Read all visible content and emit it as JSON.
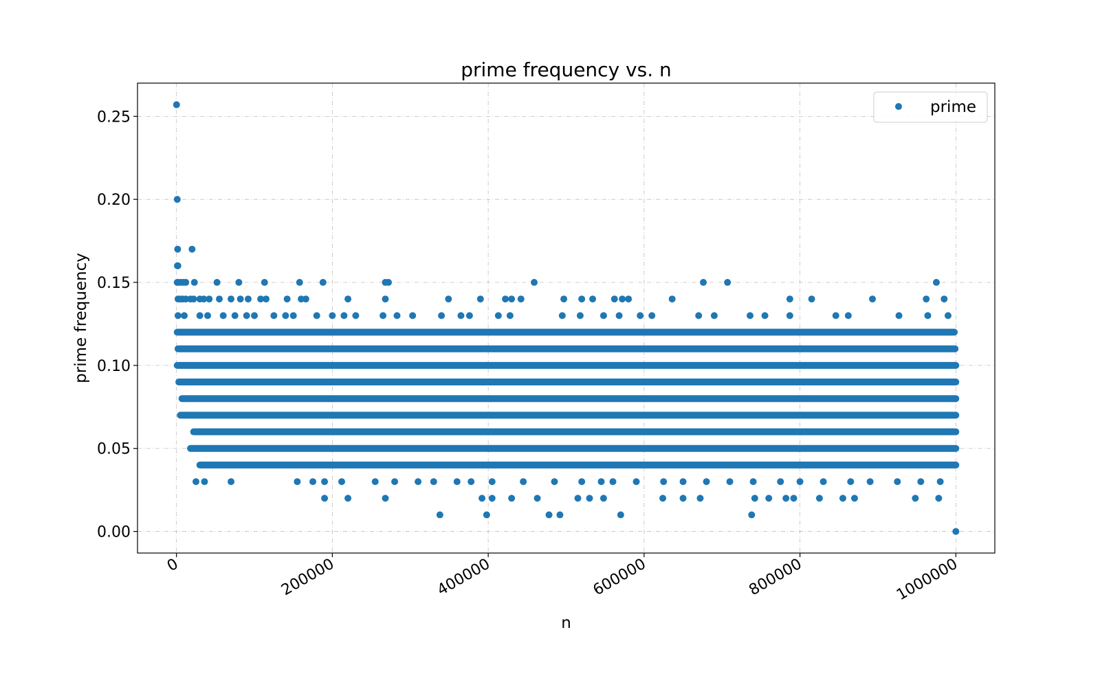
{
  "chart_data": {
    "type": "scatter",
    "title": "prime frequency vs. n",
    "xlabel": "n",
    "ylabel": "prime frequency",
    "xlim": [
      -50000,
      1050000
    ],
    "ylim": [
      -0.013,
      0.27
    ],
    "x_ticks": [
      0,
      200000,
      400000,
      600000,
      800000,
      1000000
    ],
    "x_tick_labels": [
      "0",
      "200000",
      "400000",
      "600000",
      "800000",
      "1000000"
    ],
    "y_ticks": [
      0.0,
      0.05,
      0.1,
      0.15,
      0.2,
      0.25
    ],
    "y_tick_labels": [
      "0.00",
      "0.05",
      "0.10",
      "0.15",
      "0.20",
      "0.25"
    ],
    "grid": true,
    "legend_position": "top-right",
    "colors": {
      "series": "#1f77b4",
      "grid": "#b0b0b0",
      "axis": "#000000"
    },
    "series": [
      {
        "name": "prime",
        "bands": [
          {
            "y": 0.04,
            "x_range": [
              30000,
              1000000
            ]
          },
          {
            "y": 0.05,
            "x_range": [
              18000,
              1000000
            ]
          },
          {
            "y": 0.06,
            "x_range": [
              22000,
              1000000
            ]
          },
          {
            "y": 0.07,
            "x_range": [
              5000,
              1000000
            ]
          },
          {
            "y": 0.08,
            "x_range": [
              7000,
              1000000
            ]
          },
          {
            "y": 0.09,
            "x_range": [
              3000,
              1000000
            ]
          },
          {
            "y": 0.1,
            "x_range": [
              1000,
              1000000
            ]
          },
          {
            "y": 0.11,
            "x_range": [
              2000,
              999000
            ]
          },
          {
            "y": 0.12,
            "x_range": [
              1000,
              998000
            ]
          }
        ],
        "points": [
          [
            100,
            0.257
          ],
          [
            1000,
            0.2
          ],
          [
            1500,
            0.17
          ],
          [
            20000,
            0.17
          ],
          [
            1200,
            0.16
          ],
          [
            1800,
            0.16
          ],
          [
            1000,
            0.15
          ],
          [
            3000,
            0.15
          ],
          [
            6000,
            0.15
          ],
          [
            9000,
            0.15
          ],
          [
            12000,
            0.15
          ],
          [
            23000,
            0.15
          ],
          [
            52000,
            0.15
          ],
          [
            80000,
            0.15
          ],
          [
            113000,
            0.15
          ],
          [
            158000,
            0.15
          ],
          [
            188000,
            0.15
          ],
          [
            268000,
            0.15
          ],
          [
            272000,
            0.15
          ],
          [
            459000,
            0.15
          ],
          [
            676000,
            0.15
          ],
          [
            707000,
            0.15
          ],
          [
            975000,
            0.15
          ],
          [
            2000,
            0.14
          ],
          [
            5000,
            0.14
          ],
          [
            8000,
            0.14
          ],
          [
            12000,
            0.14
          ],
          [
            18000,
            0.14
          ],
          [
            22000,
            0.14
          ],
          [
            30000,
            0.14
          ],
          [
            35000,
            0.14
          ],
          [
            42000,
            0.14
          ],
          [
            55000,
            0.14
          ],
          [
            70000,
            0.14
          ],
          [
            82000,
            0.14
          ],
          [
            92000,
            0.14
          ],
          [
            108000,
            0.14
          ],
          [
            115000,
            0.14
          ],
          [
            142000,
            0.14
          ],
          [
            160000,
            0.14
          ],
          [
            166000,
            0.14
          ],
          [
            220000,
            0.14
          ],
          [
            268000,
            0.14
          ],
          [
            349000,
            0.14
          ],
          [
            390000,
            0.14
          ],
          [
            422000,
            0.14
          ],
          [
            430000,
            0.14
          ],
          [
            442000,
            0.14
          ],
          [
            497000,
            0.14
          ],
          [
            520000,
            0.14
          ],
          [
            534000,
            0.14
          ],
          [
            562000,
            0.14
          ],
          [
            572000,
            0.14
          ],
          [
            580000,
            0.14
          ],
          [
            636000,
            0.14
          ],
          [
            787000,
            0.14
          ],
          [
            815000,
            0.14
          ],
          [
            893000,
            0.14
          ],
          [
            962000,
            0.14
          ],
          [
            985000,
            0.14
          ],
          [
            2000,
            0.13
          ],
          [
            10000,
            0.13
          ],
          [
            30000,
            0.13
          ],
          [
            40000,
            0.13
          ],
          [
            60000,
            0.13
          ],
          [
            75000,
            0.13
          ],
          [
            90000,
            0.13
          ],
          [
            100000,
            0.13
          ],
          [
            125000,
            0.13
          ],
          [
            140000,
            0.13
          ],
          [
            150000,
            0.13
          ],
          [
            180000,
            0.13
          ],
          [
            200000,
            0.13
          ],
          [
            215000,
            0.13
          ],
          [
            230000,
            0.13
          ],
          [
            265000,
            0.13
          ],
          [
            283000,
            0.13
          ],
          [
            303000,
            0.13
          ],
          [
            340000,
            0.13
          ],
          [
            365000,
            0.13
          ],
          [
            376000,
            0.13
          ],
          [
            413000,
            0.13
          ],
          [
            428000,
            0.13
          ],
          [
            495000,
            0.13
          ],
          [
            518000,
            0.13
          ],
          [
            548000,
            0.13
          ],
          [
            568000,
            0.13
          ],
          [
            595000,
            0.13
          ],
          [
            610000,
            0.13
          ],
          [
            670000,
            0.13
          ],
          [
            690000,
            0.13
          ],
          [
            736000,
            0.13
          ],
          [
            755000,
            0.13
          ],
          [
            787000,
            0.13
          ],
          [
            846000,
            0.13
          ],
          [
            862000,
            0.13
          ],
          [
            927000,
            0.13
          ],
          [
            964000,
            0.13
          ],
          [
            990000,
            0.13
          ],
          [
            25000,
            0.03
          ],
          [
            36000,
            0.03
          ],
          [
            70000,
            0.03
          ],
          [
            155000,
            0.03
          ],
          [
            175000,
            0.03
          ],
          [
            190000,
            0.03
          ],
          [
            212000,
            0.03
          ],
          [
            255000,
            0.03
          ],
          [
            280000,
            0.03
          ],
          [
            310000,
            0.03
          ],
          [
            330000,
            0.03
          ],
          [
            360000,
            0.03
          ],
          [
            378000,
            0.03
          ],
          [
            405000,
            0.03
          ],
          [
            445000,
            0.03
          ],
          [
            485000,
            0.03
          ],
          [
            520000,
            0.03
          ],
          [
            545000,
            0.03
          ],
          [
            560000,
            0.03
          ],
          [
            590000,
            0.03
          ],
          [
            625000,
            0.03
          ],
          [
            650000,
            0.03
          ],
          [
            680000,
            0.03
          ],
          [
            710000,
            0.03
          ],
          [
            740000,
            0.03
          ],
          [
            775000,
            0.03
          ],
          [
            800000,
            0.03
          ],
          [
            830000,
            0.03
          ],
          [
            865000,
            0.03
          ],
          [
            890000,
            0.03
          ],
          [
            925000,
            0.03
          ],
          [
            955000,
            0.03
          ],
          [
            980000,
            0.03
          ],
          [
            190000,
            0.02
          ],
          [
            220000,
            0.02
          ],
          [
            268000,
            0.02
          ],
          [
            392000,
            0.02
          ],
          [
            405000,
            0.02
          ],
          [
            430000,
            0.02
          ],
          [
            463000,
            0.02
          ],
          [
            515000,
            0.02
          ],
          [
            530000,
            0.02
          ],
          [
            548000,
            0.02
          ],
          [
            624000,
            0.02
          ],
          [
            650000,
            0.02
          ],
          [
            672000,
            0.02
          ],
          [
            742000,
            0.02
          ],
          [
            760000,
            0.02
          ],
          [
            782000,
            0.02
          ],
          [
            792000,
            0.02
          ],
          [
            825000,
            0.02
          ],
          [
            855000,
            0.02
          ],
          [
            870000,
            0.02
          ],
          [
            948000,
            0.02
          ],
          [
            978000,
            0.02
          ],
          [
            338000,
            0.01
          ],
          [
            398000,
            0.01
          ],
          [
            478000,
            0.01
          ],
          [
            492000,
            0.01
          ],
          [
            570000,
            0.01
          ],
          [
            738000,
            0.01
          ],
          [
            1000000,
            0.0
          ]
        ]
      }
    ]
  }
}
